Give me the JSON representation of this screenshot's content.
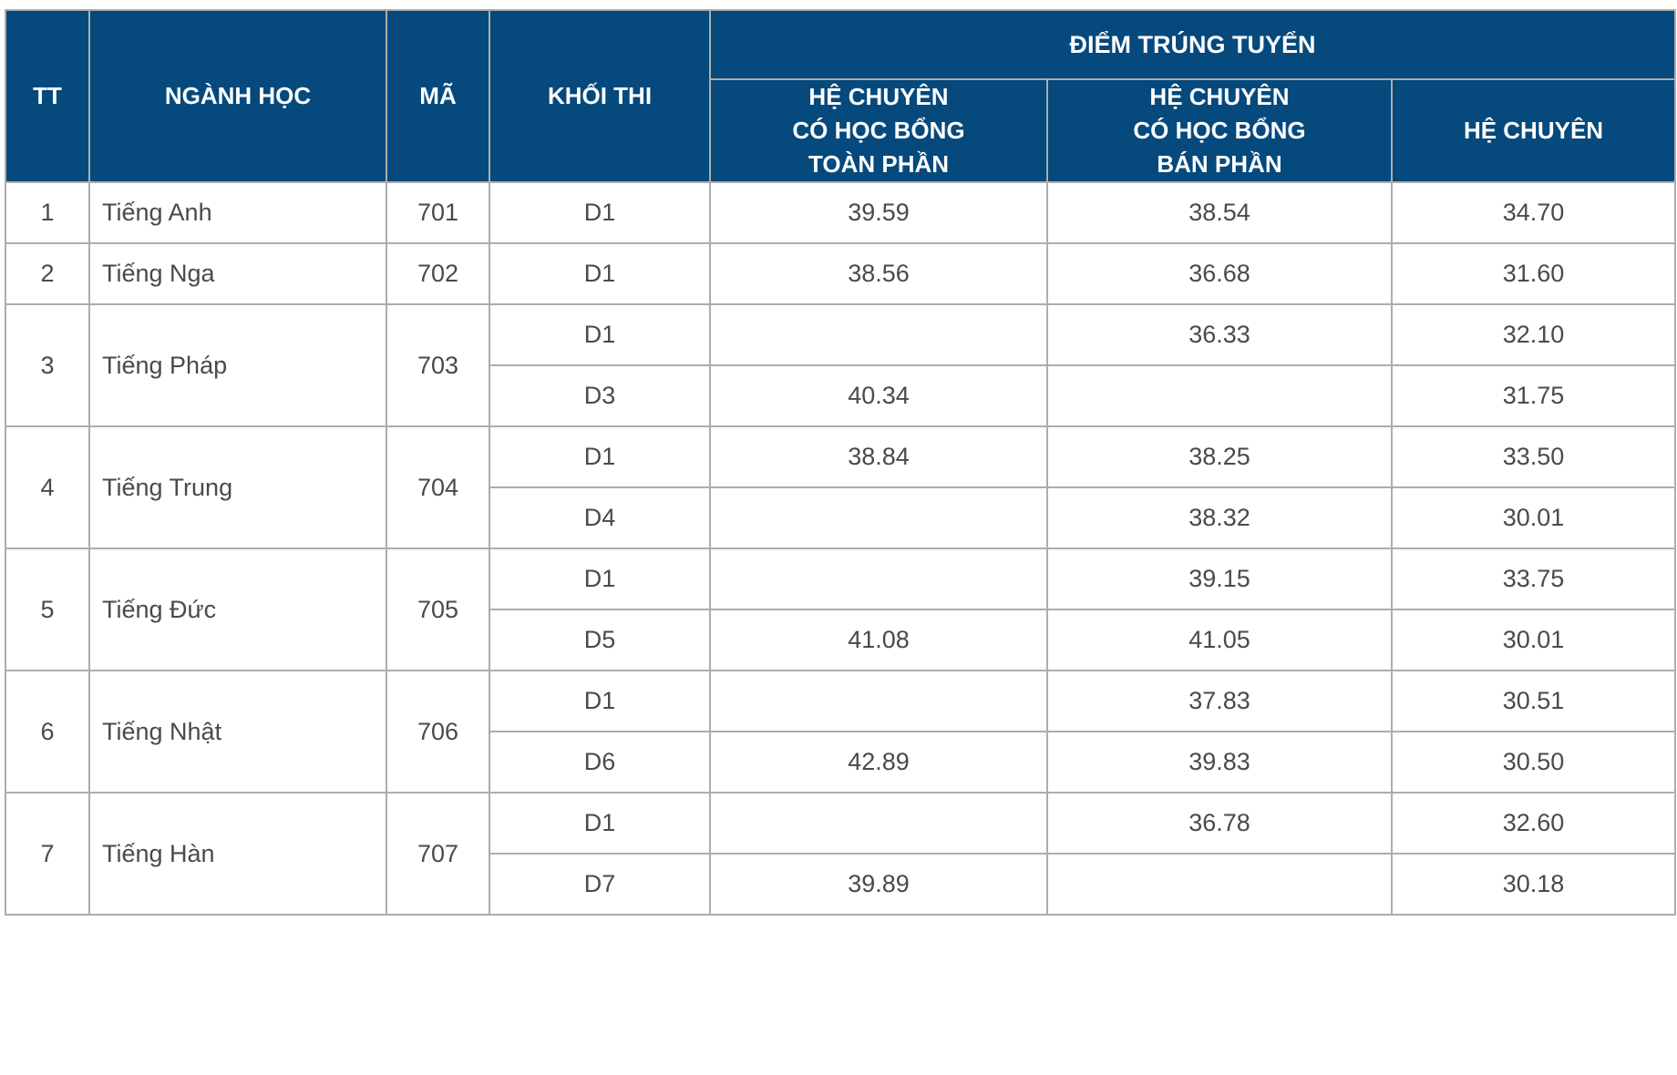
{
  "colors": {
    "header_bg": "#05497D",
    "header_text": "#FFFFFF",
    "body_text": "#4A4A4A",
    "border": "#ADADAD",
    "row_bg": "#FFFFFF"
  },
  "header": {
    "tt": "TT",
    "major": "NGÀNH HỌC",
    "code": "MÃ",
    "exam_block": "KHỐI THI",
    "group": "ĐIỂM TRÚNG TUYỂN",
    "sub_full": "HỆ CHUYÊN\nCÓ HỌC BỔNG\nTOÀN PHẦN",
    "sub_half": "HỆ CHUYÊN\nCÓ HỌC BỔNG\nBÁN PHẦN",
    "sub_regular": "HỆ CHUYÊN"
  },
  "rows": [
    {
      "tt": "1",
      "major": "Tiếng Anh",
      "code": "701",
      "blocks": [
        {
          "block": "D1",
          "full": "39.59",
          "half": "38.54",
          "regular": "34.70"
        }
      ]
    },
    {
      "tt": "2",
      "major": "Tiếng Nga",
      "code": "702",
      "blocks": [
        {
          "block": "D1",
          "full": "38.56",
          "half": "36.68",
          "regular": "31.60"
        }
      ]
    },
    {
      "tt": "3",
      "major": "Tiếng Pháp",
      "code": "703",
      "blocks": [
        {
          "block": "D1",
          "full": "",
          "half": "36.33",
          "regular": "32.10"
        },
        {
          "block": "D3",
          "full": "40.34",
          "half": "",
          "regular": "31.75"
        }
      ]
    },
    {
      "tt": "4",
      "major": "Tiếng Trung",
      "code": "704",
      "blocks": [
        {
          "block": "D1",
          "full": "38.84",
          "half": "38.25",
          "regular": "33.50"
        },
        {
          "block": "D4",
          "full": "",
          "half": "38.32",
          "regular": "30.01"
        }
      ]
    },
    {
      "tt": "5",
      "major": "Tiếng Đức",
      "code": "705",
      "blocks": [
        {
          "block": "D1",
          "full": "",
          "half": "39.15",
          "regular": "33.75"
        },
        {
          "block": "D5",
          "full": "41.08",
          "half": "41.05",
          "regular": "30.01"
        }
      ]
    },
    {
      "tt": "6",
      "major": "Tiếng Nhật",
      "code": "706",
      "blocks": [
        {
          "block": "D1",
          "full": "",
          "half": "37.83",
          "regular": "30.51"
        },
        {
          "block": "D6",
          "full": "42.89",
          "half": "39.83",
          "regular": "30.50"
        }
      ]
    },
    {
      "tt": "7",
      "major": "Tiếng Hàn",
      "code": "707",
      "blocks": [
        {
          "block": "D1",
          "full": "",
          "half": "36.78",
          "regular": "32.60"
        },
        {
          "block": "D7",
          "full": "39.89",
          "half": "",
          "regular": "30.18"
        }
      ]
    }
  ],
  "chart_data": {
    "type": "table",
    "title": "ĐIỂM TRÚNG TUYỂN",
    "columns": [
      "TT",
      "NGÀNH HỌC",
      "MÃ",
      "KHỐI THI",
      "HỆ CHUYÊN CÓ HỌC BỔNG TOÀN PHẦN",
      "HỆ CHUYÊN CÓ HỌC BỔNG BÁN PHẦN",
      "HỆ CHUYÊN"
    ],
    "rows": [
      [
        "1",
        "Tiếng Anh",
        "701",
        "D1",
        39.59,
        38.54,
        34.7
      ],
      [
        "2",
        "Tiếng Nga",
        "702",
        "D1",
        38.56,
        36.68,
        31.6
      ],
      [
        "3",
        "Tiếng Pháp",
        "703",
        "D1",
        null,
        36.33,
        32.1
      ],
      [
        "3",
        "Tiếng Pháp",
        "703",
        "D3",
        40.34,
        null,
        31.75
      ],
      [
        "4",
        "Tiếng Trung",
        "704",
        "D1",
        38.84,
        38.25,
        33.5
      ],
      [
        "4",
        "Tiếng Trung",
        "704",
        "D4",
        null,
        38.32,
        30.01
      ],
      [
        "5",
        "Tiếng Đức",
        "705",
        "D1",
        null,
        39.15,
        33.75
      ],
      [
        "5",
        "Tiếng Đức",
        "705",
        "D5",
        41.08,
        41.05,
        30.01
      ],
      [
        "6",
        "Tiếng Nhật",
        "706",
        "D1",
        null,
        37.83,
        30.51
      ],
      [
        "6",
        "Tiếng Nhật",
        "706",
        "D6",
        42.89,
        39.83,
        30.5
      ],
      [
        "7",
        "Tiếng Hàn",
        "707",
        "D1",
        null,
        36.78,
        32.6
      ],
      [
        "7",
        "Tiếng Hàn",
        "707",
        "D7",
        39.89,
        null,
        30.18
      ]
    ]
  }
}
